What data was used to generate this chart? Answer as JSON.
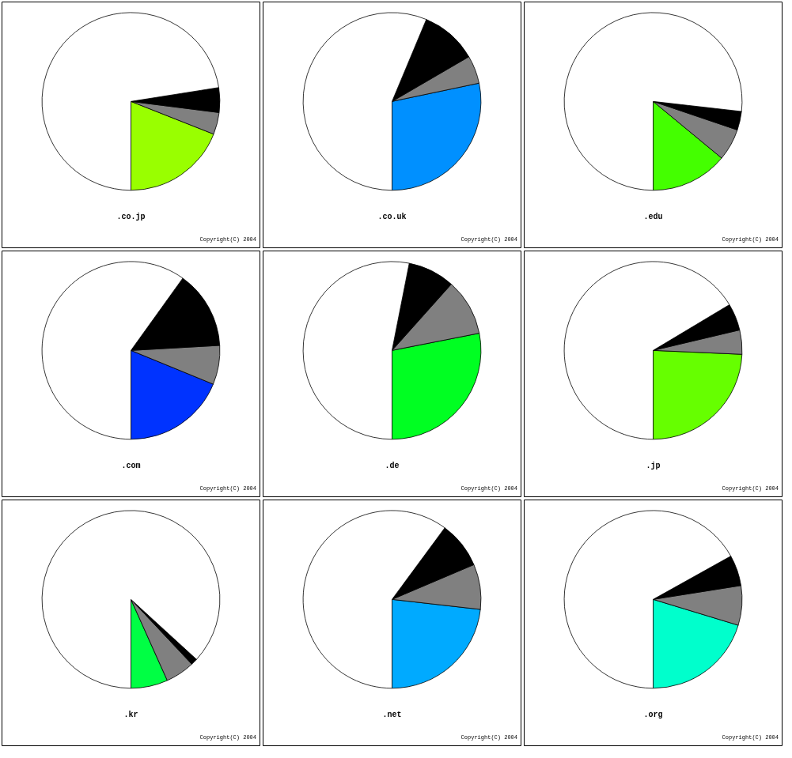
{
  "chart_data": [
    {
      "type": "pie",
      "title": ".co.jp",
      "categories": [
        null,
        null,
        null,
        null
      ],
      "values": [
        19.0,
        4.0,
        4.5,
        72.5
      ],
      "colors": [
        "#99ff00",
        "#808080",
        "#000000",
        "#ffffff"
      ],
      "annotations": [
        "Copyright(C) 2004"
      ]
    },
    {
      "type": "pie",
      "title": ".co.uk",
      "categories": [
        null,
        null,
        null,
        null
      ],
      "values": [
        28.3,
        5.1,
        10.3,
        56.3
      ],
      "colors": [
        "#0090ff",
        "#808080",
        "#000000",
        "#ffffff"
      ],
      "annotations": [
        "Copyright(C) 2004"
      ]
    },
    {
      "type": "pie",
      "title": ".edu",
      "categories": [
        null,
        null,
        null,
        null
      ],
      "values": [
        14.0,
        5.8,
        3.4,
        76.8
      ],
      "colors": [
        "#44ff00",
        "#808080",
        "#000000",
        "#ffffff"
      ],
      "annotations": [
        "Copyright(C) 2004"
      ]
    },
    {
      "type": "pie",
      "title": ".com",
      "categories": [
        null,
        null,
        null,
        null
      ],
      "values": [
        18.8,
        7.1,
        14.2,
        59.9
      ],
      "colors": [
        "#0033ff",
        "#808080",
        "#000000",
        "#ffffff"
      ],
      "annotations": [
        "Copyright(C) 2004"
      ]
    },
    {
      "type": "pie",
      "title": ".de",
      "categories": [
        null,
        null,
        null,
        null
      ],
      "values": [
        28.1,
        10.3,
        8.5,
        53.1
      ],
      "colors": [
        "#00ff22",
        "#808080",
        "#000000",
        "#ffffff"
      ],
      "annotations": [
        "Copyright(C) 2004"
      ]
    },
    {
      "type": "pie",
      "title": ".jp",
      "categories": [
        null,
        null,
        null,
        null
      ],
      "values": [
        24.3,
        4.4,
        4.9,
        66.4
      ],
      "colors": [
        "#66ff00",
        "#808080",
        "#000000",
        "#ffffff"
      ],
      "annotations": [
        "Copyright(C) 2004"
      ]
    },
    {
      "type": "pie",
      "title": ".kr",
      "categories": [
        null,
        null,
        null,
        null
      ],
      "values": [
        6.7,
        5.3,
        1.2,
        86.8
      ],
      "colors": [
        "#00ff44",
        "#808080",
        "#000000",
        "#ffffff"
      ],
      "annotations": [
        "Copyright(C) 2004"
      ]
    },
    {
      "type": "pie",
      "title": ".net",
      "categories": [
        null,
        null,
        null,
        null
      ],
      "values": [
        23.2,
        8.2,
        8.5,
        60.1
      ],
      "colors": [
        "#00aaff",
        "#808080",
        "#000000",
        "#ffffff"
      ],
      "annotations": [
        "Copyright(C) 2004"
      ]
    },
    {
      "type": "pie",
      "title": ".org",
      "categories": [
        null,
        null,
        null,
        null
      ],
      "values": [
        20.3,
        7.2,
        5.6,
        66.9
      ],
      "colors": [
        "#00ffcc",
        "#808080",
        "#000000",
        "#ffffff"
      ],
      "annotations": [
        "Copyright(C) 2004"
      ]
    }
  ]
}
